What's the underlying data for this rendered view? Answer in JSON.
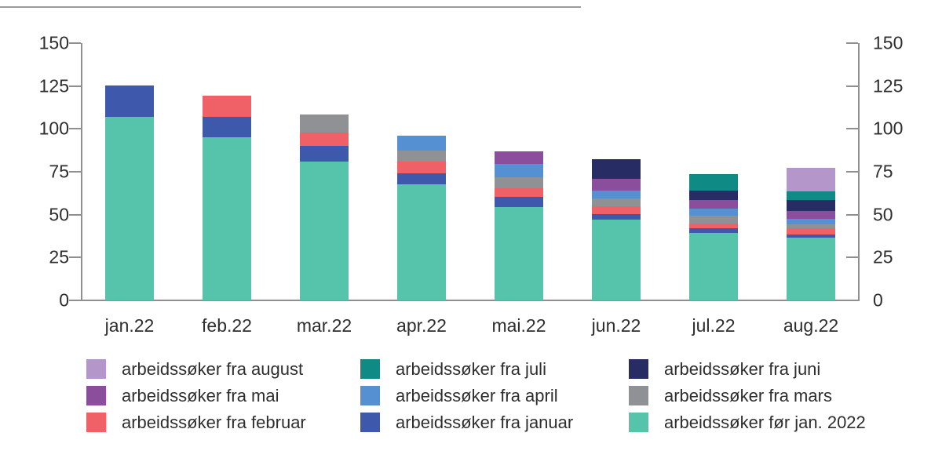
{
  "chart_data": {
    "type": "bar",
    "stacked": true,
    "title": "",
    "xlabel": "",
    "ylabel": "",
    "categories": [
      "jan.22",
      "feb.22",
      "mar.22",
      "apr.22",
      "mai.22",
      "jun.22",
      "jul.22",
      "aug.22"
    ],
    "series": [
      {
        "name": "arbeidssøker før jan. 2022",
        "color": "#56c3ab",
        "values": [
          107,
          95,
          81,
          67.5,
          54.5,
          47,
          39.5,
          36.5
        ]
      },
      {
        "name": "arbeidssøker fra januar",
        "color": "#3e59ab",
        "values": [
          18.5,
          12,
          9,
          6.5,
          6,
          3.5,
          2.5,
          2
        ]
      },
      {
        "name": "arbeidssøker fra februar",
        "color": "#ef6067",
        "values": [
          0,
          12.5,
          8,
          7,
          5,
          4.5,
          3,
          3.5
        ]
      },
      {
        "name": "arbeidssøker fra mars",
        "color": "#8f9194",
        "values": [
          0,
          0,
          10.5,
          6.5,
          6.5,
          4.5,
          4.5,
          2.5
        ]
      },
      {
        "name": "arbeidssøker fra april",
        "color": "#5590d2",
        "values": [
          0,
          0,
          0,
          8.5,
          7.5,
          4.5,
          4,
          3
        ]
      },
      {
        "name": "arbeidssøker fra mai",
        "color": "#8a4e9d",
        "values": [
          0,
          0,
          0,
          0,
          7.5,
          7,
          5,
          4.5
        ]
      },
      {
        "name": "arbeidssøker fra juni",
        "color": "#272c64",
        "values": [
          0,
          0,
          0,
          0,
          0,
          11.5,
          5.5,
          6.5
        ]
      },
      {
        "name": "arbeidssøker fra juli",
        "color": "#108a85",
        "values": [
          0,
          0,
          0,
          0,
          0,
          0,
          9.5,
          5
        ]
      },
      {
        "name": "arbeidssøker fra august",
        "color": "#b596cb",
        "values": [
          0,
          0,
          0,
          0,
          0,
          0,
          0,
          14
        ]
      }
    ],
    "ylim": [
      0,
      150
    ],
    "yticks": [
      0,
      25,
      50,
      75,
      100,
      125,
      150
    ],
    "y_axis_sides": [
      "left",
      "right"
    ],
    "grid": false,
    "legend_position": "bottom",
    "legend_columns": [
      [
        "arbeidssøker fra august",
        "arbeidssøker fra mai",
        "arbeidssøker fra februar"
      ],
      [
        "arbeidssøker fra juli",
        "arbeidssøker fra april",
        "arbeidssøker fra januar"
      ],
      [
        "arbeidssøker fra juni",
        "arbeidssøker fra mars",
        "arbeidssøker før jan. 2022"
      ]
    ]
  }
}
